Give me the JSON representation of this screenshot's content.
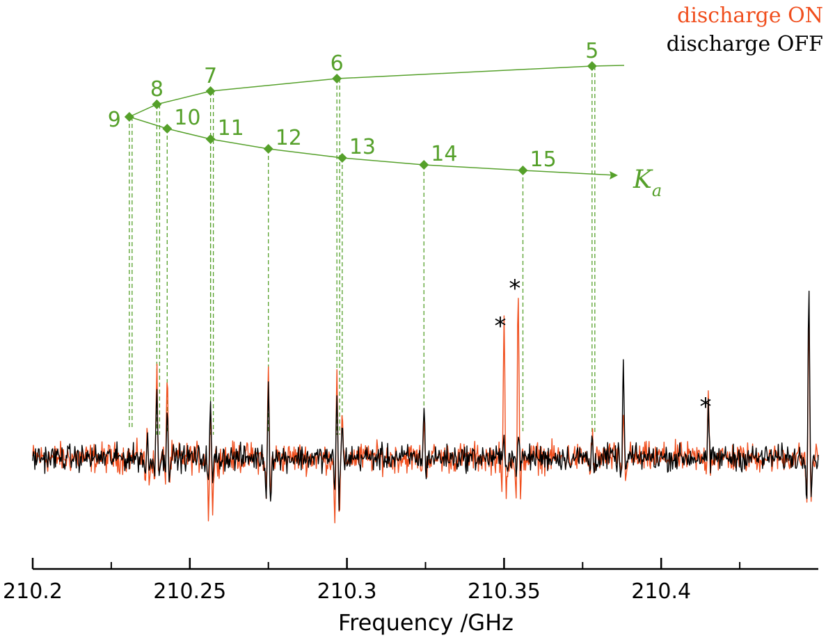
{
  "chart_data": {
    "type": "line",
    "title": "",
    "xlabel": "Frequency /GHz",
    "ylabel": "",
    "xlim": [
      210.2,
      210.45
    ],
    "x_ticks": [
      {
        "value": 210.2,
        "label": "210.2"
      },
      {
        "value": 210.25,
        "label": "210.25"
      },
      {
        "value": 210.3,
        "label": "210.3"
      },
      {
        "value": 210.35,
        "label": "210.35"
      },
      {
        "value": 210.4,
        "label": "210.4"
      }
    ],
    "minor_ticks": [
      210.225,
      210.275,
      210.325,
      210.375,
      210.425
    ],
    "series": [
      {
        "name": "discharge ON",
        "color": "#f04e1d"
      },
      {
        "name": "discharge OFF",
        "color": "#000000"
      }
    ],
    "lines": [
      {
        "freq": 210.2365,
        "on": 0.3,
        "off": 0.2,
        "on_neg": -0.45,
        "off_neg": -0.3
      },
      {
        "freq": 210.2395,
        "on": 0.95,
        "off": 0.8,
        "on_neg": -0.6,
        "off_neg": -0.4
      },
      {
        "freq": 210.2428,
        "on": 0.85,
        "off": 0.55,
        "on_neg": -0.55,
        "off_neg": -0.35
      },
      {
        "freq": 210.2566,
        "on": 0.68,
        "off": 0.5,
        "on_neg": -1.1,
        "off_neg": -0.5
      },
      {
        "freq": 210.275,
        "on": 0.95,
        "off": 0.8,
        "on_neg": -0.9,
        "off_neg": -0.85
      },
      {
        "freq": 210.2968,
        "on": 1.0,
        "off": 0.75,
        "on_neg": -1.2,
        "off_neg": -0.8
      },
      {
        "freq": 210.2985,
        "on": 0.4,
        "off": 0.3,
        "on_neg": -0.3,
        "off_neg": -0.2
      },
      {
        "freq": 210.3245,
        "on": 0.35,
        "off": 0.5,
        "on_neg": -0.2,
        "off_neg": -0.25
      },
      {
        "freq": 210.35,
        "on": 1.4,
        "off": 0.2,
        "on_neg": -0.9,
        "off_neg": -0.15
      },
      {
        "freq": 210.3545,
        "on": 1.7,
        "off": 0.25,
        "on_neg": -1.1,
        "off_neg": -0.2
      },
      {
        "freq": 210.378,
        "on": 0.3,
        "off": 0.2,
        "on_neg": -0.4,
        "off_neg": -0.25
      },
      {
        "freq": 210.388,
        "on": 0.4,
        "off": 0.95,
        "on_neg": -0.3,
        "off_neg": -0.5
      },
      {
        "freq": 210.415,
        "on": 0.6,
        "off": 0.45,
        "on_neg": -0.2,
        "off_neg": -0.2
      },
      {
        "freq": 210.447,
        "on": 1.4,
        "off": 1.8,
        "on_neg": -0.95,
        "off_neg": -0.85
      }
    ],
    "asterisks": [
      {
        "freq": 210.3497,
        "symbol": "*"
      },
      {
        "freq": 210.3543,
        "symbol": "*"
      },
      {
        "freq": 210.415,
        "symbol": "*"
      }
    ],
    "assignment": {
      "axis_label": "K",
      "axis_subscript": "a",
      "upper_branch": [
        {
          "ka": "5",
          "freq": 210.378
        },
        {
          "ka": "6",
          "freq": 210.2968
        },
        {
          "ka": "7",
          "freq": 210.2566
        },
        {
          "ka": "8",
          "freq": 210.2395
        }
      ],
      "turning_point": {
        "ka": "9",
        "freq": 210.2365
      },
      "lower_branch": [
        {
          "ka": "10",
          "freq": 210.2428
        },
        {
          "ka": "11",
          "freq": 210.2566
        },
        {
          "ka": "12",
          "freq": 210.275
        },
        {
          "ka": "13",
          "freq": 210.2985
        },
        {
          "ka": "14",
          "freq": 210.3245
        },
        {
          "ka": "15",
          "freq": 210.356
        }
      ]
    }
  }
}
